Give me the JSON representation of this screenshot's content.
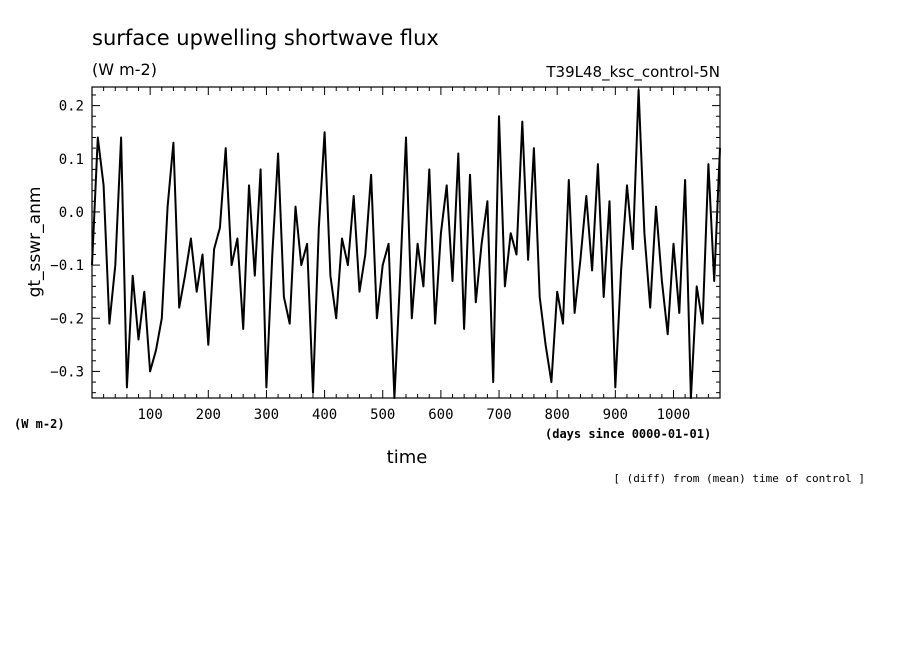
{
  "chart_data": {
    "type": "line",
    "title": "surface upwelling shortwave flux",
    "units": "(W m-2)",
    "run_label": "T39L48_ksc_control-5N",
    "ylabel": "gt_sswr_anm",
    "y_units": "(W m-2)",
    "xlabel": "time",
    "x_units": "(days since 0000-01-01)",
    "footnote": "[ (diff) from (mean) time of control ]",
    "xlim": [
      0,
      1080
    ],
    "ylim": [
      -0.35,
      0.235
    ],
    "x_ticks": [
      100,
      200,
      300,
      400,
      500,
      600,
      700,
      800,
      900,
      1000
    ],
    "y_ticks": [
      0.2,
      0.1,
      0.0,
      -0.1,
      -0.2,
      -0.3
    ],
    "x_tick_labels": [
      "100",
      "200",
      "300",
      "400",
      "500",
      "600",
      "700",
      "800",
      "900",
      "1000"
    ],
    "y_tick_labels": [
      "0.2",
      "0.1",
      "0.0",
      "−0.1",
      "−0.2",
      "−0.3"
    ],
    "series": [
      {
        "x": [
          0,
          10,
          20,
          30,
          40,
          50,
          60,
          70,
          80,
          90,
          100,
          110,
          120,
          130,
          140,
          150,
          160,
          170,
          180,
          190,
          200,
          210,
          220,
          230,
          240,
          250,
          260,
          270,
          280,
          290,
          300,
          310,
          320,
          330,
          340,
          350,
          360,
          370,
          380,
          390,
          400,
          410,
          420,
          430,
          440,
          450,
          460,
          470,
          480,
          490,
          500,
          510,
          520,
          530,
          540,
          550,
          560,
          570,
          580,
          590,
          600,
          610,
          620,
          630,
          640,
          650,
          660,
          670,
          680,
          690,
          700,
          710,
          720,
          730,
          740,
          750,
          760,
          770,
          780,
          790,
          800,
          810,
          820,
          830,
          840,
          850,
          860,
          870,
          880,
          890,
          900,
          910,
          920,
          930,
          940,
          950,
          960,
          970,
          980,
          990,
          1000,
          1010,
          1020,
          1030,
          1040,
          1050,
          1060,
          1070,
          1080
        ],
        "values": [
          -0.1,
          0.14,
          0.05,
          -0.21,
          -0.1,
          0.14,
          -0.33,
          -0.12,
          -0.24,
          -0.15,
          -0.3,
          -0.26,
          -0.2,
          0.01,
          0.13,
          -0.18,
          -0.12,
          -0.05,
          -0.15,
          -0.08,
          -0.25,
          -0.07,
          -0.03,
          0.12,
          -0.1,
          -0.05,
          -0.22,
          0.05,
          -0.12,
          0.08,
          -0.33,
          -0.08,
          0.11,
          -0.16,
          -0.21,
          0.01,
          -0.1,
          -0.06,
          -0.34,
          -0.03,
          0.15,
          -0.12,
          -0.2,
          -0.05,
          -0.1,
          0.03,
          -0.15,
          -0.08,
          0.07,
          -0.2,
          -0.1,
          -0.06,
          -0.35,
          -0.12,
          0.14,
          -0.2,
          -0.06,
          -0.14,
          0.08,
          -0.21,
          -0.04,
          0.05,
          -0.13,
          0.11,
          -0.22,
          0.07,
          -0.17,
          -0.06,
          0.02,
          -0.32,
          0.18,
          -0.14,
          -0.04,
          -0.08,
          0.17,
          -0.09,
          0.12,
          -0.16,
          -0.25,
          -0.32,
          -0.15,
          -0.21,
          0.06,
          -0.19,
          -0.09,
          0.03,
          -0.11,
          0.09,
          -0.16,
          0.02,
          -0.33,
          -0.11,
          0.05,
          -0.07,
          0.23,
          -0.04,
          -0.18,
          0.01,
          -0.13,
          -0.23,
          -0.06,
          -0.19,
          0.06,
          -0.35,
          -0.14,
          -0.21,
          0.09,
          -0.13,
          0.12
        ]
      }
    ]
  }
}
